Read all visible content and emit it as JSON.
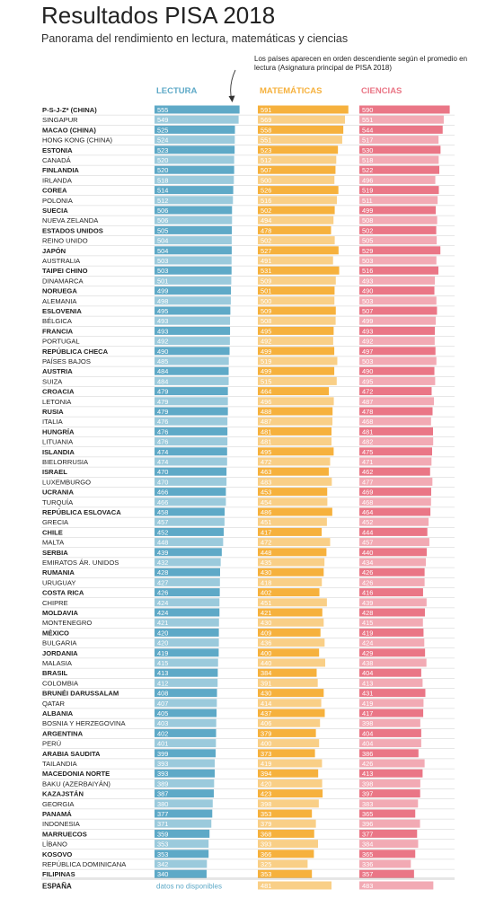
{
  "title": "Resultados PISA 2018",
  "subtitle": "Panorama del rendimiento en lectura, matemáticas y ciencias",
  "note": "Los países aparecen en orden descendiente según el promedio en lectura (Asignatura principal de PISA 2018)",
  "missing_label": "datos no disponibles",
  "colors": {
    "lectura": "#5ea9c7",
    "matematicas": "#f6b13d",
    "ciencias": "#ea7686",
    "value_text": "#ffffff",
    "country_text": "#1f1f1f",
    "row_line": "#cfcfcf"
  },
  "chart_data": {
    "type": "bar",
    "x_range": [
      0,
      600
    ],
    "series": [
      {
        "name": "LECTURA",
        "key": "lectura"
      },
      {
        "name": "MATEMÁTICAS",
        "key": "matematicas"
      },
      {
        "name": "CIENCIAS",
        "key": "ciencias"
      }
    ],
    "categories": [
      "P-S-J-Z* (CHINA)",
      "SINGAPUR",
      "MACAO (CHINA)",
      "HONG KONG (CHINA)",
      "ESTONIA",
      "CANADÁ",
      "FINLANDIA",
      "IRLANDA",
      "COREA",
      "POLONIA",
      "SUECIA",
      "NUEVA ZELANDA",
      "ESTADOS UNIDOS",
      "REINO UNIDO",
      "JAPÓN",
      "AUSTRALIA",
      "TAIPEI CHINO",
      "DINAMARCA",
      "NORUEGA",
      "ALEMANIA",
      "ESLOVENIA",
      "BÉLGICA",
      "FRANCIA",
      "PORTUGAL",
      "REPÚBLICA CHECA",
      "PAÍSES BAJOS",
      "AUSTRIA",
      "SUIZA",
      "CROACIA",
      "LETONIA",
      "RUSIA",
      "ITALIA",
      "HUNGRÍA",
      "LITUANIA",
      "ISLANDIA",
      "BIELORRUSIA",
      "ISRAEL",
      "LUXEMBURGO",
      "UCRANIA",
      "TURQUÍA",
      "REPÚBLICA ESLOVACA",
      "GRECIA",
      "CHILE",
      "MALTA",
      "SERBIA",
      "EMIRATOS ÁR. UNIDOS",
      "RUMANIA",
      "URUGUAY",
      "COSTA RICA",
      "CHIPRE",
      "MOLDAVIA",
      "MONTENEGRO",
      "MÉXICO",
      "BULGARIA",
      "JORDANIA",
      "MALASIA",
      "BRASIL",
      "COLOMBIA",
      "BRUNÉI DARUSSALAM",
      "QATAR",
      "ALBANIA",
      "BOSNIA Y HERZEGOVINA",
      "ARGENTINA",
      "PERÚ",
      "ARABIA SAUDITA",
      "TAILANDIA",
      "MACEDONIA NORTE",
      "BAKU (AZERBAIYÁN)",
      "KAZAJSTÁN",
      "GEORGIA",
      "PANAMÁ",
      "INDONESIA",
      "MARRUECOS",
      "LÍBANO",
      "KOSOVO",
      "REPÚBLICA DOMINICANA",
      "FILIPINAS"
    ],
    "lectura": [
      555,
      549,
      525,
      524,
      523,
      520,
      520,
      518,
      514,
      512,
      506,
      506,
      505,
      504,
      504,
      503,
      503,
      501,
      499,
      498,
      495,
      493,
      493,
      492,
      490,
      485,
      484,
      484,
      479,
      479,
      479,
      476,
      476,
      476,
      474,
      474,
      470,
      470,
      466,
      466,
      458,
      457,
      452,
      448,
      439,
      432,
      428,
      427,
      426,
      424,
      424,
      421,
      420,
      420,
      419,
      415,
      413,
      412,
      408,
      407,
      405,
      403,
      402,
      401,
      399,
      393,
      393,
      389,
      387,
      380,
      377,
      371,
      359,
      353,
      353,
      342,
      340
    ],
    "matematicas": [
      591,
      569,
      558,
      551,
      523,
      512,
      507,
      500,
      526,
      516,
      502,
      494,
      478,
      502,
      527,
      491,
      531,
      509,
      501,
      500,
      509,
      508,
      495,
      492,
      499,
      519,
      499,
      515,
      464,
      496,
      488,
      487,
      481,
      481,
      495,
      472,
      463,
      483,
      453,
      454,
      486,
      451,
      417,
      472,
      448,
      435,
      430,
      418,
      402,
      451,
      421,
      430,
      409,
      436,
      400,
      440,
      384,
      391,
      430,
      414,
      437,
      406,
      379,
      400,
      373,
      419,
      394,
      420,
      423,
      398,
      353,
      379,
      368,
      393,
      366,
      325,
      353
    ],
    "ciencias": [
      590,
      551,
      544,
      517,
      530,
      518,
      522,
      496,
      519,
      511,
      499,
      508,
      502,
      505,
      529,
      503,
      516,
      493,
      490,
      503,
      507,
      499,
      493,
      492,
      497,
      503,
      490,
      495,
      472,
      487,
      478,
      468,
      481,
      482,
      475,
      471,
      462,
      477,
      469,
      468,
      464,
      452,
      444,
      457,
      440,
      434,
      426,
      426,
      416,
      439,
      428,
      415,
      419,
      424,
      429,
      438,
      404,
      413,
      431,
      419,
      417,
      398,
      404,
      404,
      386,
      426,
      413,
      398,
      397,
      383,
      365,
      396,
      377,
      384,
      365,
      336,
      357
    ],
    "extra": {
      "country": "ESPAÑA",
      "lectura": null,
      "matematicas": 481,
      "ciencias": 483
    }
  }
}
